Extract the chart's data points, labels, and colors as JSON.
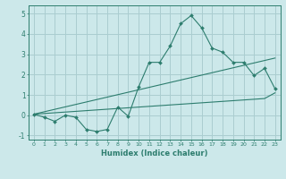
{
  "xlabel": "Humidex (Indice chaleur)",
  "ylabel": "",
  "background_color": "#cce8ea",
  "grid_color": "#aacdd0",
  "line_color": "#2d7d6e",
  "x_values": [
    0,
    1,
    2,
    3,
    4,
    5,
    6,
    7,
    8,
    9,
    10,
    11,
    12,
    13,
    14,
    15,
    16,
    17,
    18,
    19,
    20,
    21,
    22,
    23
  ],
  "y_main": [
    0.05,
    -0.1,
    -0.3,
    0.0,
    -0.1,
    -0.7,
    -0.8,
    -0.7,
    0.4,
    -0.05,
    1.4,
    2.6,
    2.6,
    3.4,
    4.5,
    4.9,
    4.3,
    3.3,
    3.1,
    2.6,
    2.6,
    1.95,
    2.3,
    1.3
  ],
  "y_reg1": [
    0.05,
    0.17,
    0.29,
    0.41,
    0.53,
    0.65,
    0.77,
    0.89,
    1.01,
    1.13,
    1.25,
    1.37,
    1.49,
    1.61,
    1.73,
    1.85,
    1.97,
    2.09,
    2.21,
    2.33,
    2.45,
    2.57,
    2.69,
    2.81
  ],
  "y_reg2": [
    0.05,
    0.085,
    0.12,
    0.155,
    0.19,
    0.225,
    0.26,
    0.295,
    0.33,
    0.365,
    0.4,
    0.435,
    0.47,
    0.505,
    0.54,
    0.575,
    0.61,
    0.645,
    0.68,
    0.715,
    0.75,
    0.785,
    0.82,
    1.1
  ],
  "ylim": [
    -1.2,
    5.4
  ],
  "xlim": [
    -0.5,
    23.5
  ],
  "yticks": [
    -1,
    0,
    1,
    2,
    3,
    4,
    5
  ],
  "xticks": [
    0,
    1,
    2,
    3,
    4,
    5,
    6,
    7,
    8,
    9,
    10,
    11,
    12,
    13,
    14,
    15,
    16,
    17,
    18,
    19,
    20,
    21,
    22,
    23
  ]
}
